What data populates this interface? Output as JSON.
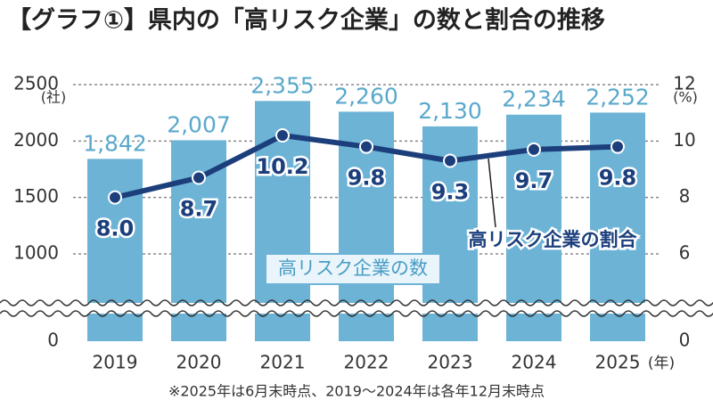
{
  "chart_data": {
    "type": "bar_line",
    "title": "【グラフ①】県内の「高リスク企業」の数と割合の推移",
    "y_unit": "(社)",
    "y2_unit": "(%)",
    "x_unit": "(年)",
    "note": "※2025年は6月末時点、2019～2024年は各年12月末時点",
    "categories": [
      "2019",
      "2020",
      "2021",
      "2022",
      "2023",
      "2024",
      "2025"
    ],
    "series": [
      {
        "name": "高リスク企業の数",
        "type": "bar",
        "color": "#6cb3d6",
        "values": [
          1842,
          2007,
          2355,
          2260,
          2130,
          2234,
          2252
        ],
        "value_labels": [
          "1,842",
          "2,007",
          "2,355",
          "2,260",
          "2,130",
          "2,234",
          "2,252"
        ]
      },
      {
        "name": "高リスク企業の割合",
        "type": "line",
        "axis": "y2",
        "color": "#1c3f7c",
        "values": [
          8.0,
          8.7,
          10.2,
          9.8,
          9.3,
          9.7,
          9.8
        ],
        "value_labels": [
          "8.0",
          "8.7",
          "10.2",
          "9.8",
          "9.3",
          "9.7",
          "9.8"
        ]
      }
    ],
    "ylim": [
      0,
      2500
    ],
    "yticks": [
      0,
      1000,
      1500,
      2000,
      2500
    ],
    "y2lim": [
      0,
      12
    ],
    "y2ticks": [
      0,
      6,
      8,
      10,
      12
    ],
    "axis_break": true,
    "grid": true
  }
}
